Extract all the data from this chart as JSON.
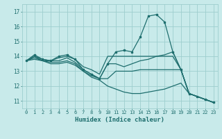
{
  "xlabel": "Humidex (Indice chaleur)",
  "background_color": "#c8eaea",
  "grid_color": "#9dcece",
  "line_color": "#1e6e6e",
  "xlim": [
    -0.5,
    23.5
  ],
  "ylim": [
    10.5,
    17.5
  ],
  "yticks": [
    11,
    12,
    13,
    14,
    15,
    16,
    17
  ],
  "xticks": [
    0,
    1,
    2,
    3,
    4,
    5,
    6,
    7,
    8,
    9,
    10,
    11,
    12,
    13,
    14,
    15,
    16,
    17,
    18,
    19,
    20,
    21,
    22,
    23
  ],
  "lines": [
    {
      "x": [
        0,
        1,
        2,
        3,
        4,
        5,
        6,
        7,
        8,
        9,
        10,
        11,
        12,
        13,
        14,
        15,
        16,
        17,
        18,
        19,
        20,
        21,
        22,
        23
      ],
      "y": [
        13.7,
        14.1,
        13.8,
        13.7,
        14.0,
        14.1,
        13.8,
        13.1,
        12.8,
        12.5,
        13.5,
        14.3,
        14.4,
        14.3,
        15.3,
        16.7,
        16.8,
        16.3,
        14.3,
        13.1,
        11.5,
        11.3,
        11.1,
        10.9
      ],
      "marker": true
    },
    {
      "x": [
        0,
        1,
        2,
        3,
        4,
        5,
        6,
        7,
        8,
        9,
        10,
        11,
        12,
        13,
        14,
        15,
        16,
        17,
        18,
        19,
        20,
        21,
        22,
        23
      ],
      "y": [
        13.7,
        14.0,
        13.8,
        13.7,
        13.9,
        14.0,
        13.8,
        13.3,
        13.1,
        12.8,
        14.0,
        14.0,
        14.0,
        14.0,
        14.0,
        14.0,
        14.0,
        14.1,
        14.3,
        13.1,
        11.5,
        11.3,
        11.1,
        10.9
      ],
      "marker": false
    },
    {
      "x": [
        0,
        1,
        2,
        3,
        4,
        5,
        6,
        7,
        8,
        9,
        10,
        11,
        12,
        13,
        14,
        15,
        16,
        17,
        18,
        19,
        20,
        21,
        22,
        23
      ],
      "y": [
        13.7,
        14.0,
        13.7,
        13.7,
        13.7,
        13.9,
        13.6,
        13.1,
        12.8,
        12.5,
        13.5,
        13.5,
        13.3,
        13.5,
        13.7,
        13.8,
        14.0,
        14.0,
        14.0,
        13.1,
        11.5,
        11.3,
        11.1,
        10.9
      ],
      "marker": false
    },
    {
      "x": [
        0,
        1,
        2,
        3,
        4,
        5,
        6,
        7,
        8,
        9,
        10,
        11,
        12,
        13,
        14,
        15,
        16,
        17,
        18,
        19,
        20,
        21,
        22,
        23
      ],
      "y": [
        13.7,
        13.9,
        13.7,
        13.6,
        13.6,
        13.7,
        13.5,
        13.0,
        12.7,
        12.5,
        12.5,
        13.0,
        13.0,
        13.0,
        13.1,
        13.1,
        13.1,
        13.1,
        13.1,
        13.1,
        11.5,
        11.3,
        11.1,
        10.9
      ],
      "marker": false
    },
    {
      "x": [
        0,
        1,
        2,
        3,
        4,
        5,
        6,
        7,
        8,
        9,
        10,
        11,
        12,
        13,
        14,
        15,
        16,
        17,
        18,
        19,
        20,
        21,
        22,
        23
      ],
      "y": [
        13.7,
        13.8,
        13.7,
        13.5,
        13.5,
        13.6,
        13.4,
        13.0,
        12.6,
        12.4,
        12.0,
        11.8,
        11.6,
        11.5,
        11.5,
        11.6,
        11.7,
        11.8,
        12.0,
        12.2,
        11.5,
        11.3,
        11.1,
        10.9
      ],
      "marker": false
    }
  ]
}
